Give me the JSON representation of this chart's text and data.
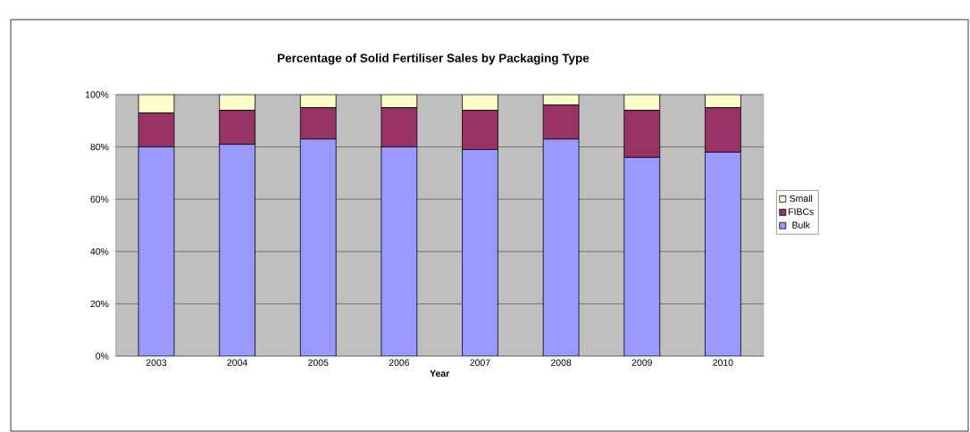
{
  "chart_data": {
    "type": "bar",
    "title": "Percentage of Solid Fertiliser Sales by Packaging Type",
    "xlabel": "Year",
    "stacked": true,
    "categories": [
      "2003",
      "2004",
      "2005",
      "2006",
      "2007",
      "2008",
      "2009",
      "2010"
    ],
    "series": [
      {
        "name": "Bulk",
        "color": "#9999ff",
        "values": [
          80,
          81,
          83,
          80,
          79,
          83,
          76,
          78
        ]
      },
      {
        "name": "FIBCs",
        "color": "#993366",
        "values": [
          13,
          13,
          12,
          15,
          15,
          13,
          18,
          17
        ]
      },
      {
        "name": "Small",
        "color": "#ffffcc",
        "values": [
          7,
          6,
          5,
          5,
          6,
          4,
          6,
          5
        ]
      }
    ],
    "ylim": [
      0,
      100
    ],
    "yticks": [
      {
        "value": 0,
        "label": "0%"
      },
      {
        "value": 20,
        "label": "20%"
      },
      {
        "value": 40,
        "label": "40%"
      },
      {
        "value": 60,
        "label": "60%"
      },
      {
        "value": 80,
        "label": "80%"
      },
      {
        "value": 100,
        "label": "100%"
      }
    ],
    "grid": "y",
    "legend": "right"
  }
}
